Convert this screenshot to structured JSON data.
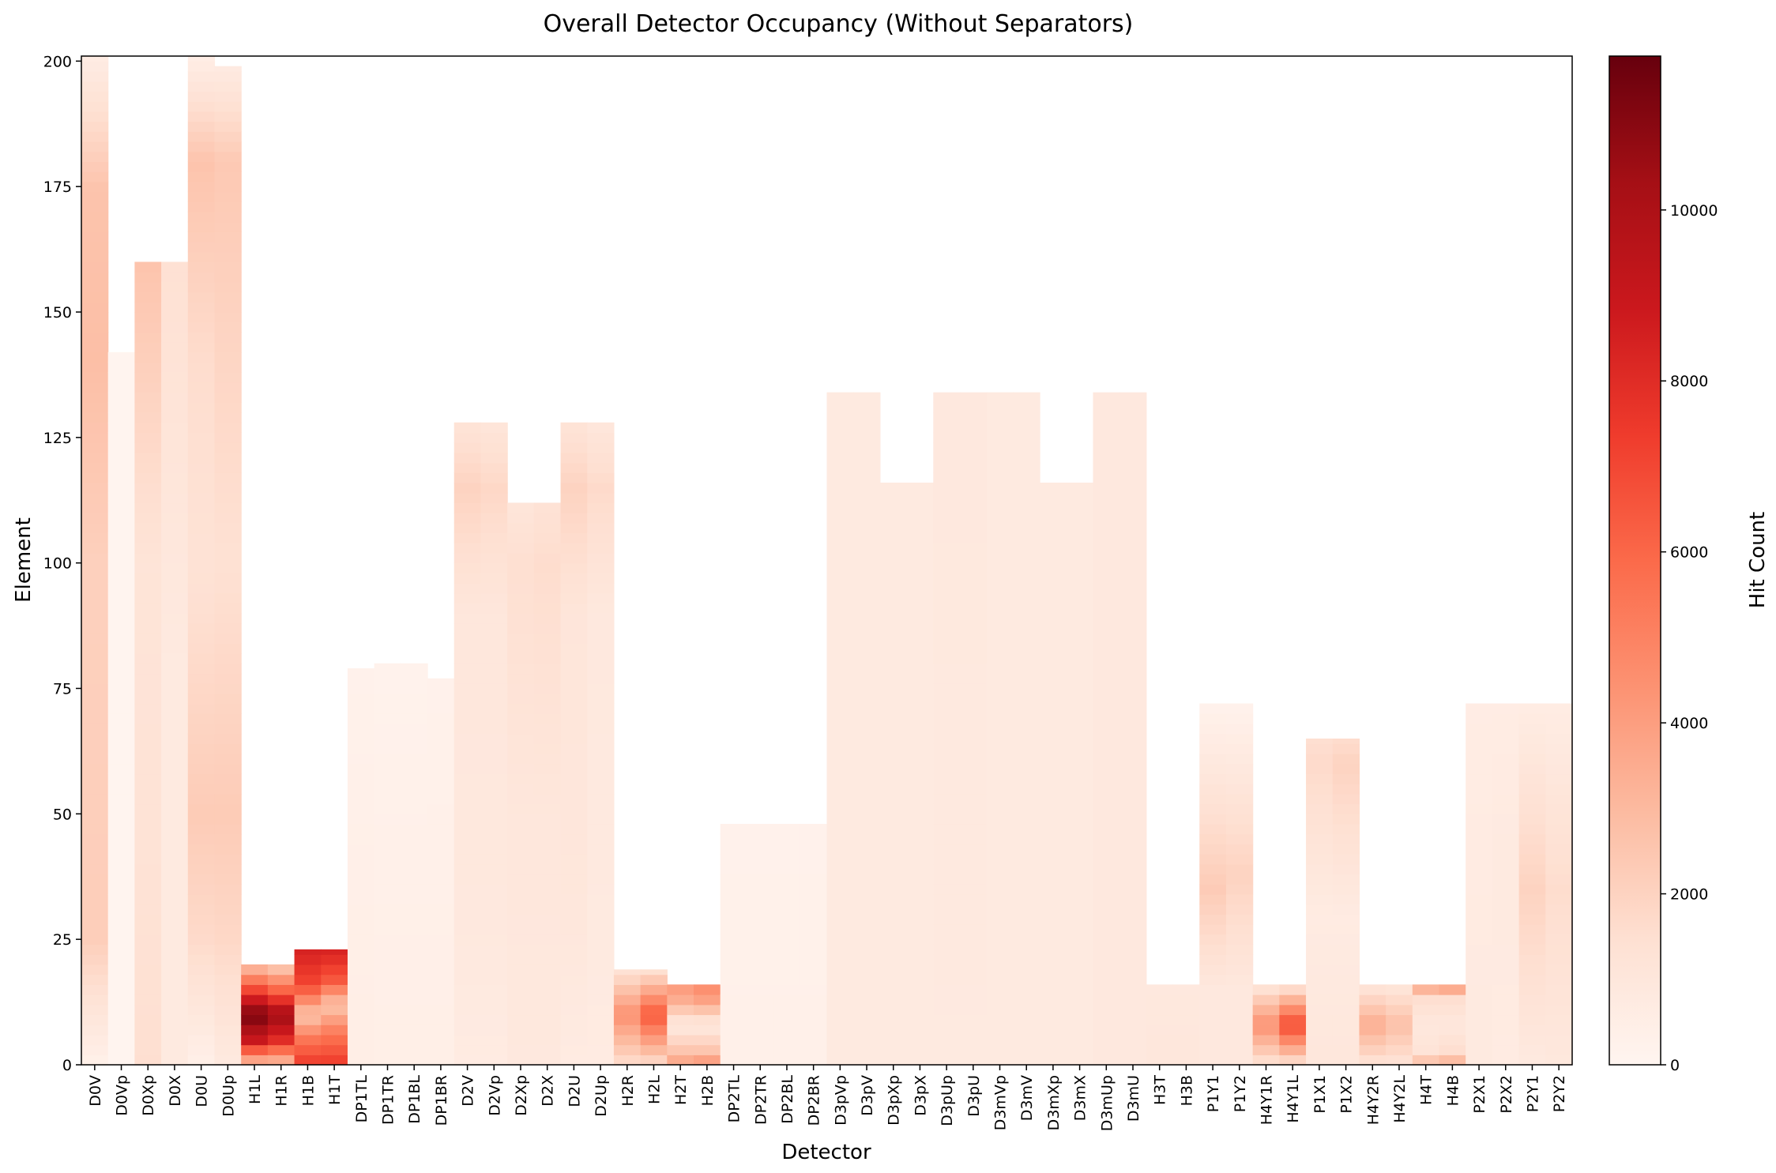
{
  "chart_data": {
    "type": "heatmap",
    "title": "Overall Detector Occupancy (Without Separators)",
    "xlabel": "Detector",
    "ylabel": "Element",
    "ylim": [
      0,
      201
    ],
    "yticks": [
      0,
      25,
      50,
      75,
      100,
      125,
      150,
      175,
      200
    ],
    "colorbar": {
      "label": "Hit Count",
      "range": [
        0,
        11800
      ],
      "ticks": [
        0,
        2000,
        4000,
        6000,
        8000,
        10000
      ],
      "colormap": "Reds",
      "colors": [
        "#fff5f0",
        "#fee0d2",
        "#fcbba1",
        "#fc9272",
        "#fb6a4a",
        "#ef3b2c",
        "#cb181d",
        "#a50f15",
        "#67000d"
      ]
    },
    "grid": false,
    "detectors": [
      {
        "name": "D0V",
        "elements": 201,
        "profile": [
          [
            0,
            300
          ],
          [
            25,
            2200
          ],
          [
            100,
            2100
          ],
          [
            140,
            2800
          ],
          [
            175,
            2600
          ],
          [
            201,
            600
          ]
        ]
      },
      {
        "name": "D0Vp",
        "elements": 142,
        "profile": [
          [
            0,
            60
          ],
          [
            142,
            60
          ]
        ]
      },
      {
        "name": "D0Xp",
        "elements": 160,
        "profile": [
          [
            0,
            1500
          ],
          [
            40,
            1300
          ],
          [
            100,
            1200
          ],
          [
            160,
            2600
          ]
        ]
      },
      {
        "name": "D0X",
        "elements": 160,
        "profile": [
          [
            0,
            800
          ],
          [
            80,
            800
          ],
          [
            160,
            1400
          ]
        ]
      },
      {
        "name": "D0U",
        "elements": 201,
        "profile": [
          [
            0,
            400
          ],
          [
            25,
            1700
          ],
          [
            50,
            2300
          ],
          [
            100,
            1300
          ],
          [
            140,
            1600
          ],
          [
            180,
            2600
          ],
          [
            201,
            500
          ]
        ]
      },
      {
        "name": "D0Up",
        "elements": 199,
        "profile": [
          [
            0,
            800
          ],
          [
            25,
            1800
          ],
          [
            50,
            2300
          ],
          [
            100,
            1400
          ],
          [
            150,
            2000
          ],
          [
            180,
            2400
          ],
          [
            199,
            700
          ]
        ]
      },
      {
        "name": "H1L",
        "elements": 20,
        "profile": [
          [
            0,
            2500
          ],
          [
            5,
            9000
          ],
          [
            10,
            11500
          ],
          [
            15,
            7000
          ],
          [
            20,
            2500
          ]
        ]
      },
      {
        "name": "H1R",
        "elements": 20,
        "profile": [
          [
            0,
            2500
          ],
          [
            5,
            8000
          ],
          [
            10,
            10500
          ],
          [
            15,
            6000
          ],
          [
            20,
            2000
          ]
        ]
      },
      {
        "name": "H1B",
        "elements": 23,
        "profile": [
          [
            0,
            7500
          ],
          [
            5,
            5500
          ],
          [
            10,
            2500
          ],
          [
            16,
            7000
          ],
          [
            23,
            8500
          ]
        ]
      },
      {
        "name": "H1T",
        "elements": 23,
        "profile": [
          [
            0,
            7500
          ],
          [
            6,
            5500
          ],
          [
            12,
            2500
          ],
          [
            17,
            6500
          ],
          [
            23,
            8500
          ]
        ]
      },
      {
        "name": "DP1TL",
        "elements": 79,
        "profile": [
          [
            0,
            500
          ],
          [
            40,
            400
          ],
          [
            79,
            250
          ]
        ]
      },
      {
        "name": "DP1TR",
        "elements": 80,
        "profile": [
          [
            0,
            450
          ],
          [
            40,
            350
          ],
          [
            80,
            200
          ]
        ]
      },
      {
        "name": "DP1BL",
        "elements": 80,
        "profile": [
          [
            0,
            450
          ],
          [
            40,
            350
          ],
          [
            80,
            200
          ]
        ]
      },
      {
        "name": "DP1BR",
        "elements": 77,
        "profile": [
          [
            0,
            450
          ],
          [
            40,
            350
          ],
          [
            77,
            250
          ]
        ]
      },
      {
        "name": "D2V",
        "elements": 128,
        "profile": [
          [
            0,
            700
          ],
          [
            30,
            900
          ],
          [
            90,
            1000
          ],
          [
            115,
            2000
          ],
          [
            128,
            1200
          ]
        ]
      },
      {
        "name": "D2Vp",
        "elements": 128,
        "profile": [
          [
            0,
            700
          ],
          [
            30,
            900
          ],
          [
            90,
            1000
          ],
          [
            115,
            1800
          ],
          [
            128,
            1100
          ]
        ]
      },
      {
        "name": "D2Xp",
        "elements": 112,
        "profile": [
          [
            0,
            900
          ],
          [
            50,
            1000
          ],
          [
            100,
            1500
          ],
          [
            112,
            1100
          ]
        ]
      },
      {
        "name": "D2X",
        "elements": 112,
        "profile": [
          [
            0,
            900
          ],
          [
            50,
            1000
          ],
          [
            100,
            1600
          ],
          [
            112,
            1300
          ]
        ]
      },
      {
        "name": "D2U",
        "elements": 128,
        "profile": [
          [
            0,
            700
          ],
          [
            30,
            1000
          ],
          [
            90,
            1100
          ],
          [
            115,
            2000
          ],
          [
            128,
            1200
          ]
        ]
      },
      {
        "name": "D2Up",
        "elements": 128,
        "profile": [
          [
            0,
            700
          ],
          [
            30,
            800
          ],
          [
            90,
            900
          ],
          [
            115,
            1700
          ],
          [
            128,
            1000
          ]
        ]
      },
      {
        "name": "H2R",
        "elements": 19,
        "profile": [
          [
            0,
            1500
          ],
          [
            10,
            4500
          ],
          [
            19,
            1200
          ]
        ]
      },
      {
        "name": "H2L",
        "elements": 19,
        "profile": [
          [
            0,
            1500
          ],
          [
            10,
            6500
          ],
          [
            19,
            1200
          ]
        ]
      },
      {
        "name": "H2T",
        "elements": 16,
        "profile": [
          [
            0,
            4000
          ],
          [
            3,
            2500
          ],
          [
            8,
            800
          ],
          [
            14,
            4000
          ],
          [
            16,
            4000
          ]
        ]
      },
      {
        "name": "H2B",
        "elements": 16,
        "profile": [
          [
            0,
            4500
          ],
          [
            3,
            2500
          ],
          [
            8,
            800
          ],
          [
            14,
            4500
          ],
          [
            16,
            4500
          ]
        ]
      },
      {
        "name": "DP2TL",
        "elements": 48,
        "profile": [
          [
            0,
            350
          ],
          [
            48,
            250
          ]
        ]
      },
      {
        "name": "DP2TR",
        "elements": 48,
        "profile": [
          [
            0,
            350
          ],
          [
            48,
            250
          ]
        ]
      },
      {
        "name": "DP2BL",
        "elements": 48,
        "profile": [
          [
            0,
            350
          ],
          [
            48,
            250
          ]
        ]
      },
      {
        "name": "DP2BR",
        "elements": 48,
        "profile": [
          [
            0,
            350
          ],
          [
            48,
            250
          ]
        ]
      },
      {
        "name": "D3pVp",
        "elements": 134,
        "profile": [
          [
            0,
            800
          ],
          [
            134,
            800
          ]
        ]
      },
      {
        "name": "D3pV",
        "elements": 134,
        "profile": [
          [
            0,
            800
          ],
          [
            134,
            800
          ]
        ]
      },
      {
        "name": "D3pXp",
        "elements": 116,
        "profile": [
          [
            0,
            800
          ],
          [
            116,
            800
          ]
        ]
      },
      {
        "name": "D3pX",
        "elements": 116,
        "profile": [
          [
            0,
            800
          ],
          [
            116,
            800
          ]
        ]
      },
      {
        "name": "D3pUp",
        "elements": 134,
        "profile": [
          [
            0,
            800
          ],
          [
            134,
            900
          ]
        ]
      },
      {
        "name": "D3pU",
        "elements": 134,
        "profile": [
          [
            0,
            800
          ],
          [
            134,
            900
          ]
        ]
      },
      {
        "name": "D3mVp",
        "elements": 134,
        "profile": [
          [
            0,
            800
          ],
          [
            134,
            800
          ]
        ]
      },
      {
        "name": "D3mV",
        "elements": 134,
        "profile": [
          [
            0,
            800
          ],
          [
            134,
            800
          ]
        ]
      },
      {
        "name": "D3mXp",
        "elements": 116,
        "profile": [
          [
            0,
            800
          ],
          [
            116,
            800
          ]
        ]
      },
      {
        "name": "D3mX",
        "elements": 116,
        "profile": [
          [
            0,
            800
          ],
          [
            116,
            800
          ]
        ]
      },
      {
        "name": "D3mUp",
        "elements": 134,
        "profile": [
          [
            0,
            900
          ],
          [
            134,
            900
          ]
        ]
      },
      {
        "name": "D3mU",
        "elements": 134,
        "profile": [
          [
            0,
            900
          ],
          [
            134,
            900
          ]
        ]
      },
      {
        "name": "H3T",
        "elements": 16,
        "profile": [
          [
            0,
            1000
          ],
          [
            16,
            900
          ]
        ]
      },
      {
        "name": "H3B",
        "elements": 16,
        "profile": [
          [
            0,
            1000
          ],
          [
            16,
            900
          ]
        ]
      },
      {
        "name": "P1Y1",
        "elements": 72,
        "profile": [
          [
            0,
            900
          ],
          [
            15,
            900
          ],
          [
            35,
            2300
          ],
          [
            72,
            200
          ]
        ]
      },
      {
        "name": "P1Y2",
        "elements": 72,
        "profile": [
          [
            0,
            900
          ],
          [
            15,
            900
          ],
          [
            38,
            2000
          ],
          [
            72,
            200
          ]
        ]
      },
      {
        "name": "H4Y1R",
        "elements": 16,
        "profile": [
          [
            0,
            1200
          ],
          [
            8,
            4500
          ],
          [
            16,
            1000
          ]
        ]
      },
      {
        "name": "H4Y1L",
        "elements": 16,
        "profile": [
          [
            0,
            1200
          ],
          [
            8,
            7000
          ],
          [
            16,
            1000
          ]
        ]
      },
      {
        "name": "P1X1",
        "elements": 65,
        "profile": [
          [
            0,
            1000
          ],
          [
            30,
            700
          ],
          [
            60,
            1700
          ],
          [
            65,
            1500
          ]
        ]
      },
      {
        "name": "P1X2",
        "elements": 65,
        "profile": [
          [
            0,
            1000
          ],
          [
            30,
            700
          ],
          [
            60,
            2000
          ],
          [
            65,
            1600
          ]
        ]
      },
      {
        "name": "H4Y2R",
        "elements": 16,
        "profile": [
          [
            0,
            1200
          ],
          [
            8,
            3500
          ],
          [
            16,
            1000
          ]
        ]
      },
      {
        "name": "H4Y2L",
        "elements": 16,
        "profile": [
          [
            0,
            1200
          ],
          [
            8,
            2800
          ],
          [
            16,
            1000
          ]
        ]
      },
      {
        "name": "H4T",
        "elements": 16,
        "profile": [
          [
            0,
            3000
          ],
          [
            3,
            1200
          ],
          [
            8,
            900
          ],
          [
            13,
            1500
          ],
          [
            16,
            4000
          ]
        ]
      },
      {
        "name": "H4B",
        "elements": 16,
        "profile": [
          [
            0,
            3500
          ],
          [
            3,
            1500
          ],
          [
            8,
            900
          ],
          [
            13,
            1500
          ],
          [
            16,
            4500
          ]
        ]
      },
      {
        "name": "P2X1",
        "elements": 72,
        "profile": [
          [
            0,
            800
          ],
          [
            40,
            700
          ],
          [
            72,
            600
          ]
        ]
      },
      {
        "name": "P2X2",
        "elements": 72,
        "profile": [
          [
            0,
            700
          ],
          [
            40,
            800
          ],
          [
            72,
            600
          ]
        ]
      },
      {
        "name": "P2Y1",
        "elements": 72,
        "profile": [
          [
            0,
            800
          ],
          [
            35,
            2000
          ],
          [
            72,
            600
          ]
        ]
      },
      {
        "name": "P2Y2",
        "elements": 72,
        "profile": [
          [
            0,
            900
          ],
          [
            35,
            1600
          ],
          [
            72,
            600
          ]
        ]
      }
    ]
  }
}
